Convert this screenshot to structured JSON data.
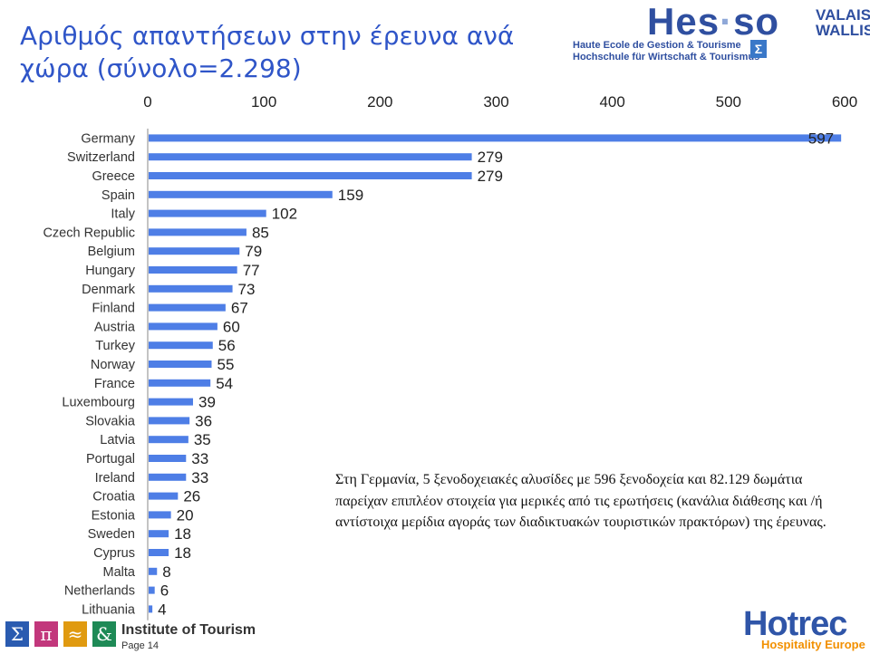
{
  "title": {
    "line1": "Αριθμός απαντήσεων στην έρευνα ανά",
    "line2": "χώρα (σύνολο=2.298)"
  },
  "chart_data": {
    "type": "bar",
    "orientation": "horizontal",
    "categories": [
      "Germany",
      "Switzerland",
      "Greece",
      "Spain",
      "Italy",
      "Czech Republic",
      "Belgium",
      "Hungary",
      "Denmark",
      "Finland",
      "Austria",
      "Turkey",
      "Norway",
      "France",
      "Luxembourg",
      "Slovakia",
      "Latvia",
      "Portugal",
      "Ireland",
      "Croatia",
      "Estonia",
      "Sweden",
      "Cyprus",
      "Malta",
      "Netherlands",
      "Lithuania"
    ],
    "values": [
      597,
      279,
      279,
      159,
      102,
      85,
      79,
      77,
      73,
      67,
      60,
      56,
      55,
      54,
      39,
      36,
      35,
      33,
      33,
      26,
      20,
      18,
      18,
      8,
      6,
      4
    ],
    "xlim": [
      0,
      600
    ],
    "xticks": [
      "0",
      "100",
      "200",
      "300",
      "400",
      "500",
      "600"
    ],
    "axis_position": "top",
    "bar_color": "#4e7ee6",
    "grid": false
  },
  "note": "Στη Γερμανία, 5 ξενοδοχειακές αλυσίδες με 596 ξενοδοχεία και 82.129 δωμάτια παρείχαν επιπλέον στοιχεία για μερικές από τις ερωτήσεις (κανάλια διάθεσης και /ή αντίστοιχα μερίδια αγοράς των διαδικτυακών τουριστικών πρακτόρων) της έρευνας.",
  "logo_hes": {
    "word_left": "Hes",
    "dot": "·",
    "word_right": "so",
    "region_1": "VALAIS",
    "region_2": "WALLIS",
    "sub_1": "Haute Ecole de Gestion & Tourisme",
    "sub_2": "Hochschule für Wirtschaft & Tourismus",
    "sigma": "Σ"
  },
  "footer": {
    "icons": [
      {
        "name": "sigma-icon",
        "glyph": "Σ",
        "color": "#2a5bb0"
      },
      {
        "name": "pi-icon",
        "glyph": "π",
        "color": "#c2377c"
      },
      {
        "name": "wave-icon",
        "glyph": "≈",
        "color": "#e09a10"
      },
      {
        "name": "ampersand-icon",
        "glyph": "&",
        "color": "#1e8a56"
      }
    ],
    "institute": "Institute of Tourism",
    "page": "Page 14"
  },
  "logo_hotrec": {
    "word": "Hotrec",
    "sub": "Hospitality Europe"
  }
}
